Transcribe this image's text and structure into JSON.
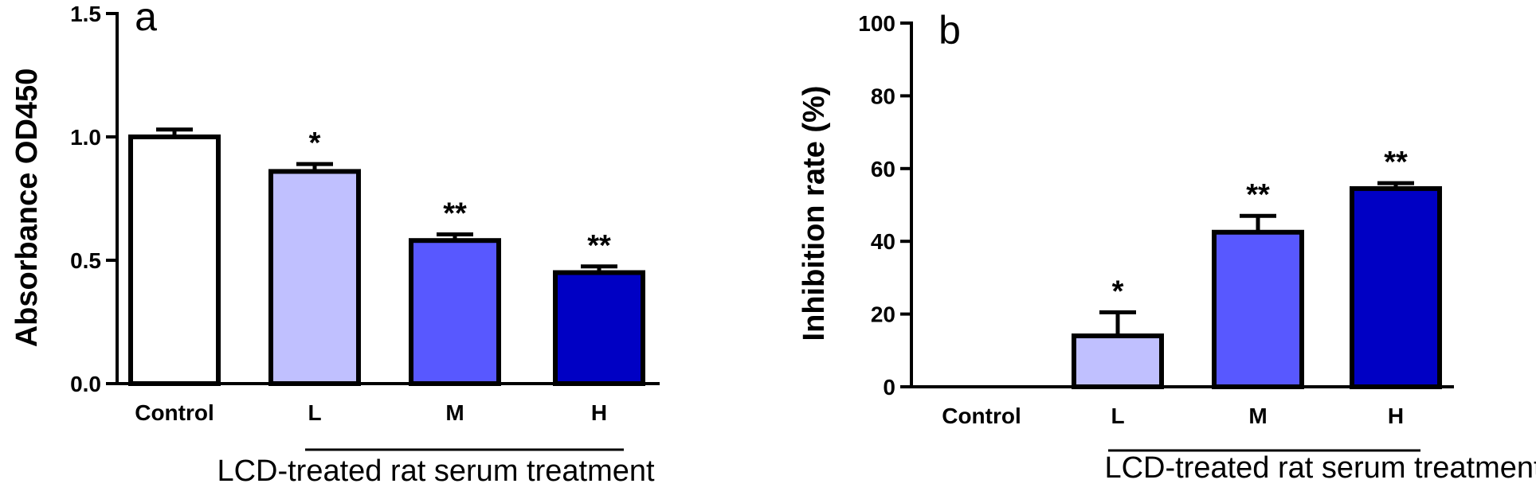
{
  "colors": {
    "axis": "#000000",
    "control": "#ffffff",
    "L": "#c0c0ff",
    "M": "#5858ff",
    "H": "#0000c4"
  },
  "chart_data": [
    {
      "type": "bar",
      "panel_label": "a",
      "ylabel": "Absorbance OD450",
      "xlabel": "LCD-treated rat serum treatment",
      "categories": [
        "Control",
        "L",
        "M",
        "H"
      ],
      "values": [
        1.0,
        0.86,
        0.58,
        0.45
      ],
      "errors": [
        0.03,
        0.03,
        0.025,
        0.025
      ],
      "significance": [
        "",
        "*",
        "**",
        "**"
      ],
      "group_line_categories": [
        "L",
        "H"
      ],
      "ylim": [
        0,
        1.5
      ],
      "yticks": [
        0.0,
        0.5,
        1.0,
        1.5
      ],
      "ytick_labels": [
        "0.0",
        "0.5",
        "1.0",
        "1.5"
      ],
      "grid": false
    },
    {
      "type": "bar",
      "panel_label": "b",
      "ylabel": "Inhibition rate (%)",
      "xlabel": "LCD-treated rat serum treatment",
      "categories": [
        "Control",
        "L",
        "M",
        "H"
      ],
      "values": [
        0,
        14,
        42.5,
        54.5
      ],
      "errors": [
        0,
        6.5,
        4.5,
        1.5
      ],
      "significance": [
        "",
        "*",
        "**",
        "**"
      ],
      "group_line_categories": [
        "L",
        "H"
      ],
      "ylim": [
        0,
        100
      ],
      "yticks": [
        0,
        20,
        40,
        60,
        80,
        100
      ],
      "ytick_labels": [
        "0",
        "20",
        "40",
        "60",
        "80",
        "100"
      ],
      "grid": false
    }
  ]
}
